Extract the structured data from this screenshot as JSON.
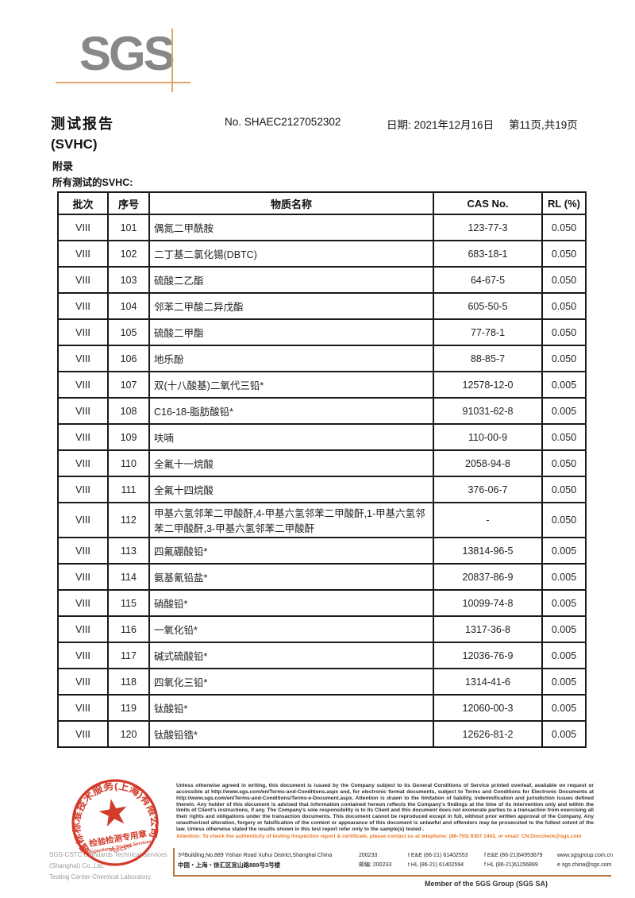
{
  "header": {
    "logo_text": "SGS",
    "report_title": "测试报告",
    "report_subtitle": "(SVHC)",
    "report_no": "No. SHAEC2127052302",
    "date_line": "日期: 2021年12月16日",
    "page_info": "第11页,共19页"
  },
  "annex": {
    "title": "附录",
    "subtitle": "所有测试的SVHC:"
  },
  "table": {
    "headers": [
      "批次",
      "序号",
      "物质名称",
      "CAS No.",
      "RL (%)"
    ],
    "rows": [
      [
        "VIII",
        "101",
        "偶氮二甲酰胺",
        "123-77-3",
        "0.050"
      ],
      [
        "VIII",
        "102",
        "二丁基二氯化锡(DBTC)",
        "683-18-1",
        "0.050"
      ],
      [
        "VIII",
        "103",
        "硫酸二乙酯",
        "64-67-5",
        "0.050"
      ],
      [
        "VIII",
        "104",
        "邻苯二甲酸二异戊酯",
        "605-50-5",
        "0.050"
      ],
      [
        "VIII",
        "105",
        "硫酸二甲酯",
        "77-78-1",
        "0.050"
      ],
      [
        "VIII",
        "106",
        "地乐酚",
        "88-85-7",
        "0.050"
      ],
      [
        "VIII",
        "107",
        "双(十八酸基)二氧代三铅*",
        "12578-12-0",
        "0.005"
      ],
      [
        "VIII",
        "108",
        "C16-18-脂肪酸铅*",
        "91031-62-8",
        "0.005"
      ],
      [
        "VIII",
        "109",
        "呋喃",
        "110-00-9",
        "0.050"
      ],
      [
        "VIII",
        "110",
        "全氟十一烷酸",
        "2058-94-8",
        "0.050"
      ],
      [
        "VIII",
        "111",
        "全氟十四烷酸",
        "376-06-7",
        "0.050"
      ],
      [
        "VIII",
        "112",
        "甲基六氢邻苯二甲酸酐,4-甲基六氢邻苯二甲酸酐,1-甲基六氢邻苯二甲酸酐,3-甲基六氢邻苯二甲酸酐",
        "-",
        "0.050"
      ],
      [
        "VIII",
        "113",
        "四氟硼酸铅*",
        "13814-96-5",
        "0.005"
      ],
      [
        "VIII",
        "114",
        "氨基氰铅盐*",
        "20837-86-9",
        "0.005"
      ],
      [
        "VIII",
        "115",
        "硝酸铅*",
        "10099-74-8",
        "0.005"
      ],
      [
        "VIII",
        "116",
        "一氧化铅*",
        "1317-36-8",
        "0.005"
      ],
      [
        "VIII",
        "117",
        "碱式硫酸铅*",
        "12036-76-9",
        "0.005"
      ],
      [
        "VIII",
        "118",
        "四氧化三铅*",
        "1314-41-6",
        "0.005"
      ],
      [
        "VIII",
        "119",
        "钛酸铅*",
        "12060-00-3",
        "0.005"
      ],
      [
        "VIII",
        "120",
        "钛酸铅锆*",
        "12626-81-2",
        "0.005"
      ]
    ]
  },
  "footer": {
    "stamp": {
      "ring_text": "通标标准技术服务(上海)有限公司",
      "ring_text_bottom": "SGS-CSTC",
      "star": "★",
      "inner_cn": "检验检测专用章",
      "inner_en": "Inspection & Testing Services"
    },
    "company_line1": "SGS-CSTC Standards Technical Services (Shanghai) Co.,Ltd.",
    "company_line2": "Testing Center-Chemical Laboratory.",
    "disclaimer": "Unless otherwise agreed in writing, this document is issued by the Company subject to its General Conditions of Service printed overleaf, available on request or accessible at http://www.sgs.com/en/Terms-and-Conditions.aspx and, for electronic format documents, subject to Terms and Conditions for Electronic Documents at http://www.sgs.com/en/Terms-and-Conditions/Terms-e-Document.aspx. Attention is drawn to the limitation of liability, indemnification and jurisdiction issues defined therein. Any holder of this document is advised that information contained hereon reflects the Company's findings at the time of its intervention only and within the limits of Client's instructions, if any. The Company's sole responsibility is to its Client and this document does not exonerate parties to a transaction from exercising all their rights and obligations under the transaction documents. This document cannot be reproduced except in full, without prior written approval of the Company. Any unauthorized alteration, forgery or falsification of the content or appearance of this document is unlawful and offenders may be prosecuted to the fullest extent of the law. Unless otherwise stated the results shown in this test report refer only to the sample(s) tested .",
    "attention": "Attention: To check the authenticity of testing /inspection report & certificate, please contact us at telephone: (86-755) 8307 1443, or email: CN.Doccheck@sgs.com",
    "address": {
      "line1": {
        "addr": "3ʳᵈBuilding,No.889 Yishan Road Xuhui District,Shanghai China",
        "post": "200233",
        "tel": "t E&E (86-21) 61402553",
        "fax": "f E&E (86-21)64953679",
        "site": "www.sgsgroup.com.cn"
      },
      "line2": {
        "addr": "中国・上海・徐汇区宜山路889号3号楼",
        "post": "邮编: 200233",
        "tel": "t HL (86-21) 61402594",
        "fax": "f HL (86-21)61156899",
        "site": "e  sgs.china@sgs.com"
      }
    },
    "member_line": "Member of the SGS Group (SGS SA)"
  },
  "colors": {
    "accent_tan": "#dca56a",
    "accent_brown": "#b5763f",
    "stamp_red": "#cf2a18",
    "attention_orange": "#e87722",
    "logo_gray": "#87888a"
  }
}
